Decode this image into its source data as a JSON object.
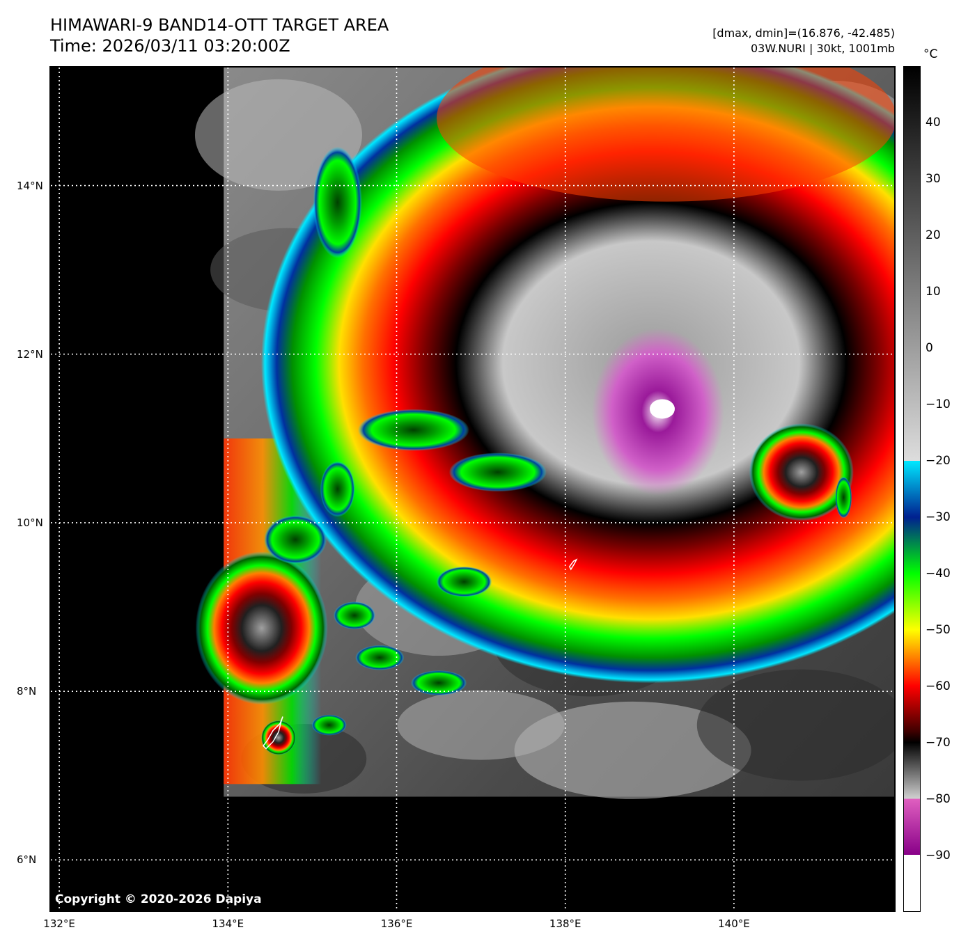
{
  "header": {
    "title": "HIMAWARI-9 BAND14-OTT TARGET AREA",
    "time": "Time: 2026/03/11 03:20:00Z",
    "range": "[dmax, dmin]=(16.876, -42.485)",
    "storm": "03W.NURI | 30kt, 1001mb"
  },
  "colorbar": {
    "unit": "°C",
    "range": [
      -100,
      50
    ],
    "ticks": [
      {
        "value": 40,
        "label": "40"
      },
      {
        "value": 30,
        "label": "30"
      },
      {
        "value": 20,
        "label": "20"
      },
      {
        "value": 10,
        "label": "10"
      },
      {
        "value": 0,
        "label": "0"
      },
      {
        "value": -10,
        "label": "−10"
      },
      {
        "value": -20,
        "label": "−20"
      },
      {
        "value": -30,
        "label": "−30"
      },
      {
        "value": -40,
        "label": "−40"
      },
      {
        "value": -50,
        "label": "−50"
      },
      {
        "value": -60,
        "label": "−60"
      },
      {
        "value": -70,
        "label": "−70"
      },
      {
        "value": -80,
        "label": "−80"
      },
      {
        "value": -90,
        "label": "−90"
      }
    ],
    "stops": [
      {
        "value": 50,
        "color": "#000000"
      },
      {
        "value": -20,
        "color": "#dddddd"
      },
      {
        "value": -20,
        "color": "#00e8ff"
      },
      {
        "value": -30,
        "color": "#002090"
      },
      {
        "value": -40,
        "color": "#00ff00"
      },
      {
        "value": -50,
        "color": "#ffff00"
      },
      {
        "value": -60,
        "color": "#ff0000"
      },
      {
        "value": -68,
        "color": "#400000"
      },
      {
        "value": -70,
        "color": "#000000"
      },
      {
        "value": -80,
        "color": "#d0d0d0"
      },
      {
        "value": -80,
        "color": "#e060c0"
      },
      {
        "value": -90,
        "color": "#880088"
      },
      {
        "value": -90,
        "color": "#ffffff"
      },
      {
        "value": -100,
        "color": "#ffffff"
      }
    ]
  },
  "map": {
    "lon_range": [
      131.9,
      141.9
    ],
    "lat_range": [
      5.4,
      15.4
    ],
    "lon_ticks": [
      {
        "value": 132,
        "label": "132°E"
      },
      {
        "value": 134,
        "label": "134°E"
      },
      {
        "value": 136,
        "label": "136°E"
      },
      {
        "value": 138,
        "label": "138°E"
      },
      {
        "value": 140,
        "label": "140°E"
      }
    ],
    "lat_ticks": [
      {
        "value": 14,
        "label": "14°N"
      },
      {
        "value": 12,
        "label": "12°N"
      },
      {
        "value": 10,
        "label": "10°N"
      },
      {
        "value": 8,
        "label": "8°N"
      },
      {
        "value": 6,
        "label": "6°N"
      }
    ],
    "data_extent": {
      "lon_min": 133.95,
      "lon_max": 141.9,
      "lat_min": 6.75,
      "lat_max": 15.4
    },
    "storm_center": {
      "lon": 139.1,
      "lat": 11.4
    },
    "copyright": "Copyright © 2020-2026 Dapiya"
  }
}
